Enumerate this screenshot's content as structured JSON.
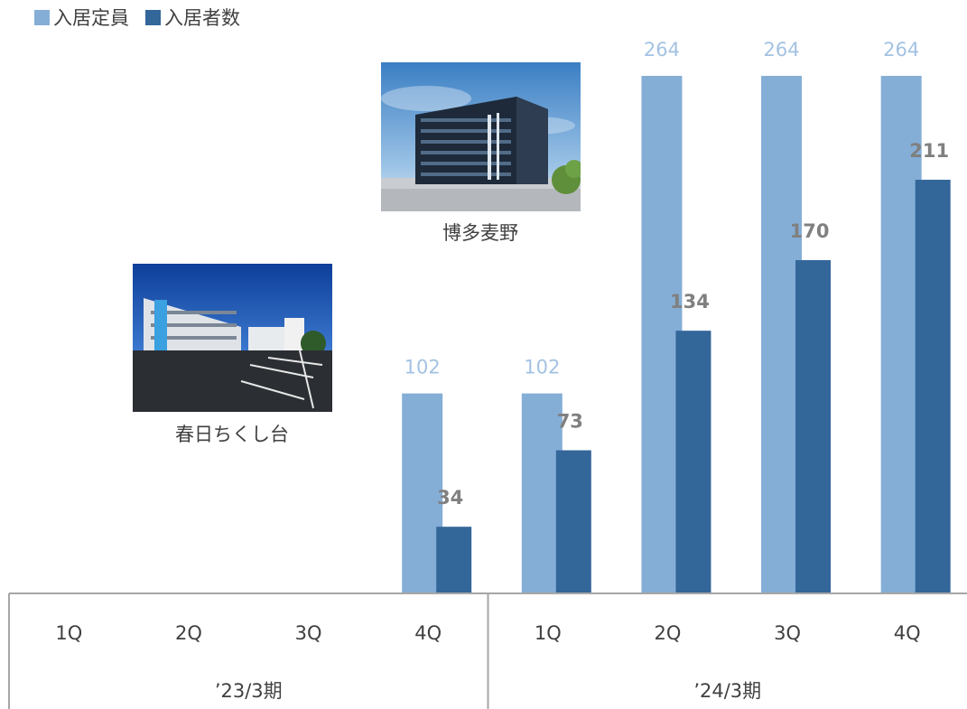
{
  "legend": {
    "capacity_label": "入居定員",
    "residents_label": "入居者数"
  },
  "colors": {
    "capacity": "#84aed6",
    "residents": "#336699",
    "capacity_label": "#a3c2e2",
    "residents_label": "#808080",
    "axis": "#a6a6a6",
    "text": "#404040"
  },
  "photos": [
    {
      "caption": "博多麦野",
      "depicts": "building-photo"
    },
    {
      "caption": "春日ちくし台",
      "depicts": "building-photo"
    }
  ],
  "chart_data": {
    "type": "bar",
    "categories": [
      "1Q",
      "2Q",
      "3Q",
      "4Q",
      "1Q",
      "2Q",
      "3Q",
      "4Q"
    ],
    "groups": [
      {
        "label": "’23/3期",
        "count": 4
      },
      {
        "label": "’24/3期",
        "count": 4
      }
    ],
    "series": [
      {
        "name": "入居定員",
        "values": [
          null,
          null,
          null,
          102,
          102,
          264,
          264,
          264
        ]
      },
      {
        "name": "入居者数",
        "values": [
          null,
          null,
          null,
          34,
          73,
          134,
          170,
          211
        ]
      }
    ],
    "ylim": [
      0,
      264
    ],
    "grid": false,
    "legend_position": "top-left",
    "data_labels": true
  }
}
